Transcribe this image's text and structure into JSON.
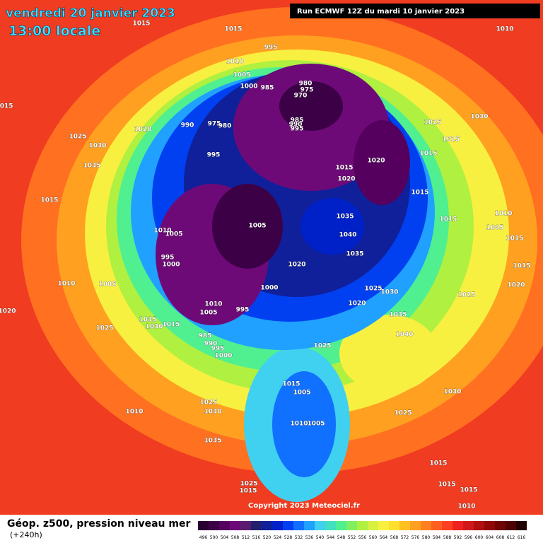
{
  "header": {
    "title": "vendredi 20 janvier 2023",
    "subtitle": "13:00 locale",
    "run": "Run ECMWF 12Z du mardi 10 janvier 2023"
  },
  "footer": {
    "product": "Géop. z500, pression niveau mer",
    "lead": "(+240h)",
    "copyright": "Copyright 2023 Meteociel.fr"
  },
  "isobars": [
    "1015",
    "1015",
    "995",
    "1010",
    "1005",
    "1000",
    "985",
    "980",
    "975",
    "970",
    "975",
    "980",
    "990",
    "995",
    "985",
    "990",
    "995",
    "1010",
    "1015",
    "1020",
    "1025",
    "1030",
    "1035",
    "1015",
    "1030",
    "1025",
    "1025",
    "1015",
    "1020",
    "1015",
    "1020",
    "1015",
    "1015",
    "1010",
    "1005",
    "995",
    "1000",
    "1005",
    "1035",
    "1040",
    "1035",
    "1020",
    "1000",
    "1025",
    "1030",
    "1020",
    "1010",
    "1005",
    "1010",
    "1005",
    "995",
    "1035",
    "1030",
    "1015",
    "1025",
    "985",
    "990",
    "995",
    "1000",
    "1035",
    "1040",
    "1025",
    "1015",
    "1005",
    "1030",
    "1025",
    "1030",
    "1010",
    "1025",
    "1010",
    "1005",
    "1035",
    "1025",
    "1015",
    "1015",
    "1015",
    "1015",
    "1010",
    "1020",
    "1015",
    "1020",
    "1005",
    "1015",
    "1010",
    "1025"
  ],
  "colorbar": {
    "labels": [
      "496",
      "500",
      "504",
      "508",
      "512",
      "516",
      "520",
      "524",
      "528",
      "532",
      "536",
      "540",
      "544",
      "548",
      "552",
      "556",
      "560",
      "564",
      "568",
      "572",
      "576",
      "580",
      "584",
      "588",
      "592",
      "596",
      "600",
      "604",
      "608",
      "612",
      "616"
    ],
    "colors": [
      "#2a0033",
      "#3c0046",
      "#55005e",
      "#6e0a78",
      "#5a1a6e",
      "#22206e",
      "#10209a",
      "#0020c8",
      "#0040f0",
      "#1070ff",
      "#20a0ff",
      "#40d0f0",
      "#40e0c0",
      "#50f090",
      "#80f060",
      "#b0f040",
      "#d8f040",
      "#f8f040",
      "#ffe030",
      "#ffc020",
      "#ffa020",
      "#ff8020",
      "#ff6020",
      "#ff4020",
      "#f02020",
      "#d01818",
      "#b01010",
      "#900808",
      "#700404",
      "#500000",
      "#200000"
    ]
  }
}
